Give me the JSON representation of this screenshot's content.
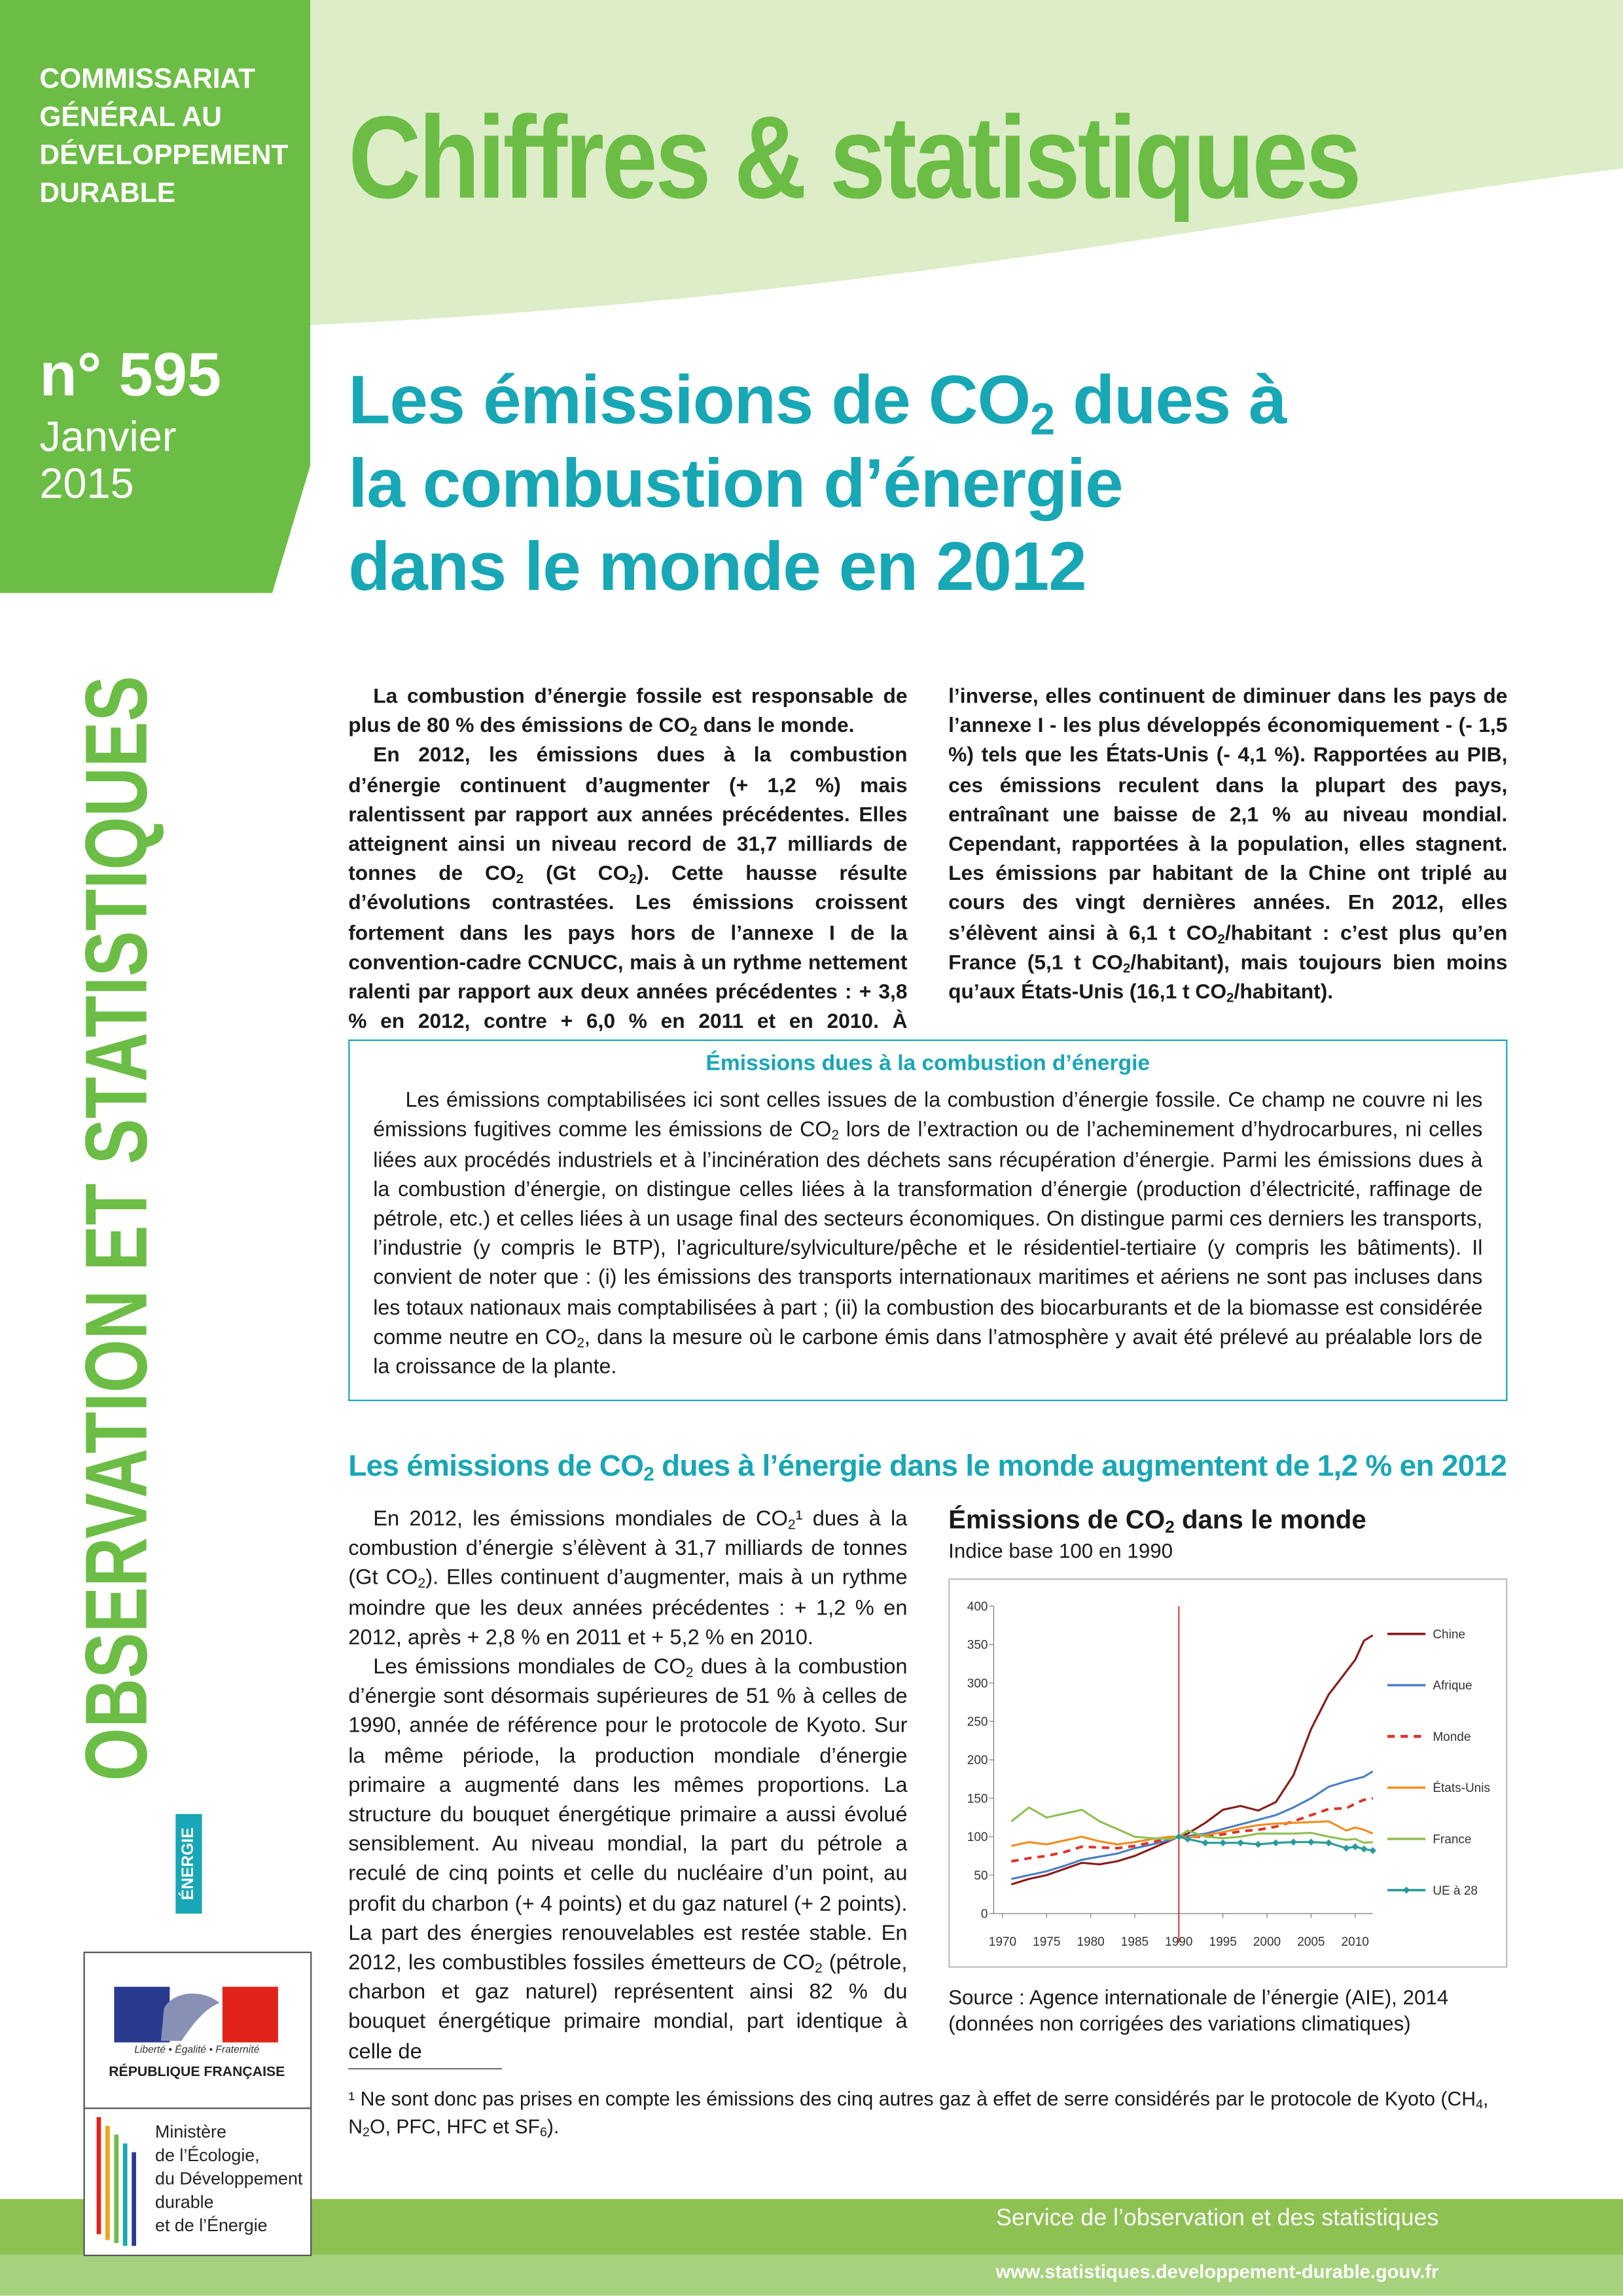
{
  "header": {
    "organization": [
      "COMMISSARIAT",
      "GÉNÉRAL AU",
      "DÉVELOPPEMENT",
      "DURABLE"
    ],
    "brand": "Chiffres & statistiques",
    "issue": "n° 595",
    "date": [
      "Janvier",
      "2015"
    ],
    "series_title": "OBSERVATION ET STATISTIQUES",
    "theme": "ÉNERGIE"
  },
  "title": [
    [
      "Les émissions de CO",
      "2",
      " dues à"
    ],
    [
      "la combustion d’énergie"
    ],
    [
      "dans le monde en 2012"
    ]
  ],
  "intro": [
    [
      "La combustion d’énergie fossile est responsable de plus de 80 % des émissions de CO",
      "2",
      " dans le monde."
    ],
    [
      "En 2012, les émissions dues à la combustion d’énergie continuent d’augmenter (+ 1,2 %) mais ralentissent par rapport aux années précédentes. Elles atteignent ainsi un niveau record de 31,7 milliards de tonnes de CO",
      "2",
      " (Gt CO",
      "2",
      "). Cette hausse résulte d’évolutions contrastées. Les émissions croissent fortement dans les pays hors de l’annexe I de la convention-cadre CCNUCC, mais à un rythme nettement ralenti par rapport aux deux années précédentes : + 3,8 % en 2012, contre + 6,0 % en 2011 et en 2010. À l’inverse, elles continuent de diminuer dans les pays de l’annexe I - les plus développés économiquement - (- 1,5 %) tels que les États-Unis (- 4,1 %). Rapportées au PIB, ces émissions reculent dans la plupart des pays, entraînant une baisse de 2,1 % au niveau mondial. Cependant, rapportées à la population, elles stagnent. Les émissions par habitant de la Chine ont triplé au cours des vingt dernières années. En 2012, elles s’élèvent ainsi à 6,1 t CO",
      "2",
      "/habitant : c’est plus qu’en France (5,1 t CO",
      "2",
      "/habitant), mais toujours bien moins qu’aux États-Unis (16,1 t CO",
      "2",
      "/habitant)."
    ]
  ],
  "box": {
    "title": "Émissions dues à la combustion d’énergie",
    "text": [
      "Les émissions comptabilisées ici sont celles issues de la combustion d’énergie fossile. Ce champ ne couvre ni les émissions fugitives comme les émissions de CO",
      "2",
      " lors de l’extraction ou de l’acheminement d’hydrocarbures, ni celles liées aux procédés industriels et à l’incinération des déchets sans récupération d’énergie. Parmi les émissions dues à la combustion d’énergie, on distingue celles liées à la transformation d’énergie (production d’électricité, raffinage de pétrole, etc.) et celles liées à un usage final des secteurs économiques. On distingue parmi ces derniers les transports, l’industrie (y compris le BTP), l’agriculture/sylviculture/pêche et le résidentiel-tertiaire (y compris les bâtiments). Il convient de noter que : (i) les émissions des transports internationaux maritimes et aériens ne sont pas incluses dans les totaux nationaux mais comptabilisées à part ; (ii) la combustion des biocarburants et de la biomasse est considérée comme neutre en CO",
      "2",
      ", dans la mesure où le carbone émis dans l’atmosphère y avait été prélevé au préalable lors de la croissance de la plante."
    ]
  },
  "section": {
    "heading": [
      "Les émissions de CO",
      "2",
      " dues à l’énergie dans le monde augmentent de 1,2 % en 2012"
    ],
    "paragraphs": [
      [
        "En 2012, les émissions mondiales de CO",
        "2",
        "¹ dues à la combustion d’énergie s’élèvent à 31,7 milliards de tonnes (Gt CO",
        "2",
        "). Elles continuent d’augmenter, mais à un rythme moindre que les deux années précédentes : + 1,2 % en 2012, après + 2,8 % en 2011 et + 5,2 % en 2010."
      ],
      [
        "Les émissions mondiales de CO",
        "2",
        " dues à la combustion d’énergie sont désormais supérieures de 51 % à celles de 1990, année de référence pour le protocole de Kyoto. Sur la même période, la production mondiale d’énergie primaire a augmenté dans les mêmes proportions. La structure du bouquet énergétique primaire a aussi évolué sensiblement. Au niveau mondial, la part du pétrole a reculé de cinq points et celle du nucléaire d’un point, au profit du charbon (+ 4 points) et du gaz naturel (+ 2 points). La part des énergies renouvelables est restée stable. En 2012, les combustibles fossiles émetteurs de CO",
        "2",
        " (pétrole, charbon et gaz naturel) représentent ainsi 82 % du bouquet énergétique primaire mondial, part identique à celle de"
      ]
    ]
  },
  "chart_data": {
    "type": "line",
    "title": [
      "Émissions de CO",
      "2",
      " dans le monde"
    ],
    "subtitle": "Indice base 100 en 1990",
    "source": [
      "Source : Agence internationale de l’énergie (AIE), 2014",
      "(données non corrigées des variations climatiques)"
    ],
    "x": [
      1971,
      1973,
      1975,
      1977,
      1979,
      1981,
      1983,
      1985,
      1987,
      1989,
      1990,
      1991,
      1993,
      1995,
      1997,
      1999,
      2001,
      2003,
      2005,
      2007,
      2009,
      2010,
      2011,
      2012
    ],
    "xlim": [
      1969,
      2012
    ],
    "xticks": [
      1970,
      1975,
      1980,
      1985,
      1990,
      1995,
      2000,
      2005,
      2010
    ],
    "ylim": [
      0,
      400
    ],
    "yticks": [
      0,
      50,
      100,
      150,
      200,
      250,
      300,
      350,
      400
    ],
    "vline": 1990,
    "vline_color": "#d9342b",
    "legend": "right",
    "series": [
      {
        "name": "Chine",
        "color": "#8b1a1a",
        "values": [
          38,
          45,
          50,
          58,
          66,
          64,
          68,
          75,
          85,
          95,
          100,
          104,
          118,
          135,
          140,
          134,
          145,
          180,
          240,
          285,
          315,
          330,
          355,
          362
        ]
      },
      {
        "name": "Afrique",
        "color": "#4a7fc1",
        "values": [
          45,
          50,
          55,
          62,
          70,
          74,
          78,
          85,
          90,
          96,
          100,
          101,
          104,
          110,
          116,
          122,
          128,
          138,
          150,
          165,
          172,
          175,
          178,
          185
        ]
      },
      {
        "name": "Monde",
        "color": "#e0312b",
        "dashed": true,
        "values": [
          68,
          72,
          75,
          80,
          87,
          86,
          85,
          88,
          93,
          98,
          100,
          100,
          100,
          103,
          107,
          109,
          113,
          120,
          128,
          136,
          137,
          143,
          148,
          150
        ]
      },
      {
        "name": "États-Unis",
        "color": "#f28c1e",
        "values": [
          88,
          93,
          90,
          95,
          100,
          94,
          90,
          93,
          97,
          100,
          100,
          99,
          102,
          106,
          111,
          115,
          117,
          118,
          119,
          120,
          108,
          112,
          109,
          104
        ]
      },
      {
        "name": "France",
        "color": "#8dc152",
        "values": [
          120,
          138,
          125,
          130,
          135,
          120,
          110,
          100,
          98,
          97,
          100,
          108,
          100,
          98,
          100,
          104,
          104,
          104,
          105,
          100,
          96,
          97,
          92,
          93
        ]
      },
      {
        "name": "UE à 28",
        "color": "#2a9a9a",
        "markers": true,
        "values": [
          null,
          null,
          null,
          null,
          null,
          null,
          null,
          null,
          null,
          null,
          100,
          97,
          92,
          92,
          92,
          90,
          92,
          93,
          93,
          92,
          85,
          87,
          84,
          82
        ]
      }
    ]
  },
  "footnote": [
    "¹ Ne sont donc pas prises en compte les émissions des cinq autres gaz à effet de serre considérés par le protocole de Kyoto (CH",
    "4",
    ", N",
    "2",
    "O, PFC, HFC et SF",
    "6",
    ")."
  ],
  "logo": {
    "motto": "Liberté • Égalité • Fraternité",
    "republic": "RÉPUBLIQUE FRANÇAISE",
    "ministry": [
      "Ministère",
      "de l’Écologie,",
      "du Développement",
      "durable",
      "et de l’Énergie"
    ]
  },
  "footer": {
    "service": "Service de l’observation et des statistiques",
    "url": "www.statistiques.developpement-durable.gouv.fr"
  }
}
